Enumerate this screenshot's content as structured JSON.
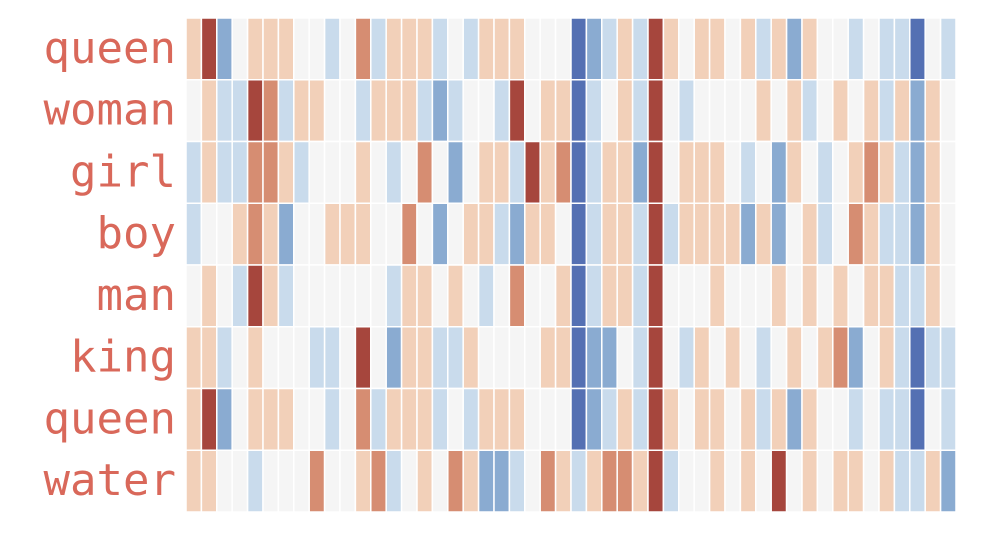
{
  "chart_data": {
    "type": "heatmap",
    "categories": [
      "queen",
      "woman",
      "girl",
      "boy",
      "man",
      "king",
      "queen",
      "water"
    ],
    "label_color": "#d9685a",
    "colors": [
      "#5470b3",
      "#8aabd1",
      "#c9dbec",
      "#f5f5f5",
      "#f2d0b9",
      "#d68d72",
      "#a6463d"
    ],
    "values": [
      [
        1,
        3,
        -2,
        0,
        1,
        1,
        1,
        0,
        0,
        -1,
        0,
        2,
        -1,
        1,
        1,
        1,
        -1,
        0,
        -1,
        1,
        1,
        1,
        0,
        0,
        0,
        -3,
        -2,
        -1,
        1,
        -1,
        3,
        1,
        0,
        1,
        1,
        0,
        1,
        -1,
        1,
        -2,
        1,
        0,
        0,
        -1,
        0,
        -1,
        -1,
        -3,
        0,
        -1
      ],
      [
        0,
        1,
        -1,
        -1,
        3,
        2,
        -1,
        1,
        1,
        0,
        0,
        -1,
        1,
        1,
        1,
        -1,
        -2,
        -1,
        0,
        0,
        -1,
        3,
        0,
        1,
        1,
        -3,
        -1,
        0,
        1,
        -1,
        3,
        0,
        -1,
        0,
        0,
        0,
        0,
        1,
        0,
        1,
        -1,
        0,
        1,
        0,
        1,
        -1,
        1,
        -2,
        1,
        0
      ],
      [
        -1,
        1,
        -1,
        -1,
        2,
        2,
        1,
        -1,
        0,
        0,
        0,
        1,
        0,
        -1,
        0,
        2,
        0,
        -2,
        0,
        1,
        1,
        -1,
        3,
        1,
        2,
        -3,
        -1,
        1,
        1,
        -2,
        3,
        0,
        1,
        1,
        1,
        0,
        -1,
        0,
        -2,
        1,
        0,
        -1,
        0,
        1,
        2,
        1,
        -1,
        -2,
        1,
        0
      ],
      [
        -1,
        0,
        0,
        1,
        2,
        1,
        -2,
        0,
        0,
        1,
        1,
        1,
        0,
        0,
        2,
        0,
        -2,
        0,
        1,
        1,
        -1,
        -2,
        1,
        1,
        0,
        -3,
        -1,
        1,
        1,
        -1,
        3,
        -1,
        1,
        1,
        1,
        1,
        -2,
        1,
        -2,
        0,
        1,
        -1,
        0,
        2,
        1,
        -1,
        -1,
        -2,
        1,
        0
      ],
      [
        0,
        1,
        0,
        -1,
        3,
        1,
        -1,
        0,
        0,
        0,
        0,
        0,
        0,
        -1,
        1,
        1,
        0,
        1,
        0,
        -1,
        0,
        2,
        0,
        0,
        1,
        -3,
        -1,
        1,
        1,
        -1,
        3,
        0,
        0,
        0,
        1,
        0,
        0,
        0,
        1,
        0,
        1,
        0,
        1,
        0,
        1,
        1,
        -1,
        -1,
        1,
        0
      ],
      [
        1,
        1,
        -1,
        0,
        1,
        0,
        0,
        0,
        -1,
        -1,
        0,
        3,
        0,
        -2,
        1,
        1,
        -1,
        -1,
        1,
        0,
        0,
        0,
        0,
        1,
        1,
        -3,
        -2,
        -2,
        0,
        -1,
        3,
        0,
        -1,
        1,
        0,
        1,
        0,
        -1,
        0,
        1,
        0,
        1,
        2,
        -2,
        0,
        1,
        -1,
        -3,
        -1,
        -1
      ],
      [
        1,
        3,
        -2,
        0,
        1,
        1,
        1,
        0,
        0,
        -1,
        0,
        2,
        -1,
        1,
        1,
        1,
        -1,
        0,
        -1,
        1,
        1,
        1,
        0,
        0,
        0,
        -3,
        -2,
        -1,
        1,
        -1,
        3,
        1,
        0,
        1,
        1,
        0,
        1,
        -1,
        1,
        -2,
        1,
        0,
        0,
        -1,
        0,
        -1,
        -1,
        -3,
        0,
        -1
      ],
      [
        1,
        1,
        0,
        0,
        -1,
        0,
        0,
        0,
        2,
        0,
        0,
        1,
        2,
        -1,
        0,
        1,
        0,
        2,
        1,
        -2,
        -2,
        -1,
        0,
        2,
        1,
        -1,
        1,
        2,
        2,
        1,
        3,
        -1,
        0,
        0,
        1,
        0,
        1,
        0,
        3,
        0,
        1,
        0,
        1,
        1,
        0,
        1,
        -1,
        -1,
        1,
        -2
      ]
    ]
  }
}
